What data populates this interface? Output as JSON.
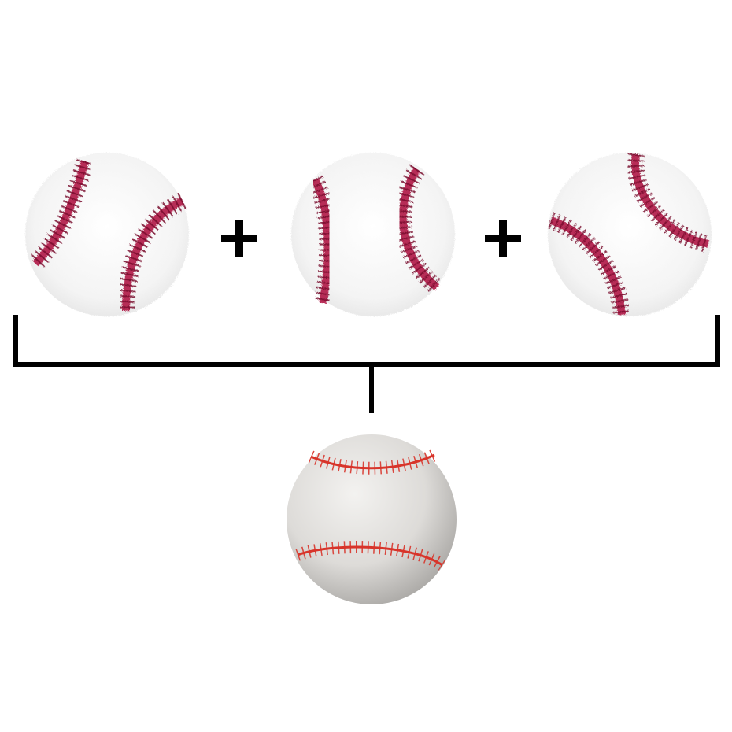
{
  "diagram": {
    "operator_symbol": "+",
    "inputs": [
      {
        "name": "sketch-baseball-1",
        "seam_color": "#b01a45",
        "body_color": "#f6f6f6"
      },
      {
        "name": "sketch-baseball-2",
        "seam_color": "#b01a45",
        "body_color": "#f7f7f7"
      },
      {
        "name": "sketch-baseball-3",
        "seam_color": "#b01a45",
        "body_color": "#f6f6f6"
      }
    ],
    "output": {
      "name": "photo-baseball",
      "seam_color": "#d8342a",
      "body_color": "#e3e1de"
    },
    "connector_color": "#000000"
  }
}
